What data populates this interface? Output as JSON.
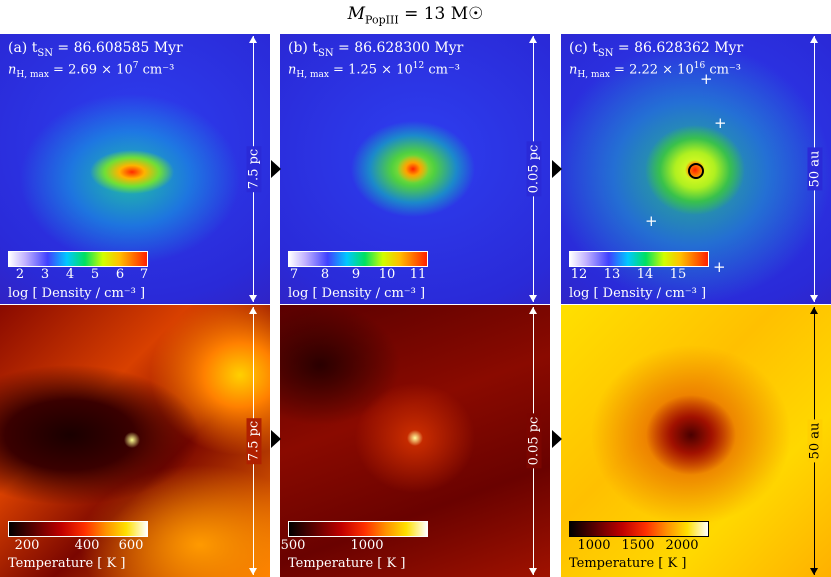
{
  "title": {
    "prefix": "M",
    "sub": "PopIII",
    "suffix": " = 13 M☉"
  },
  "panels": [
    {
      "time_label": "(a) t",
      "time_sub": "SN",
      "time_value": " = 86.608585 Myr",
      "n_label": "n",
      "n_sub": "H, max",
      "n_value": " = 2.69 × 10",
      "n_exp": "7",
      "n_unit": " cm⁻³",
      "density_ticks": [
        "2",
        "3",
        "4",
        "5",
        "6",
        "7"
      ],
      "density_label": "log [ Density / cm⁻³ ]",
      "temp_ticks": [
        "200",
        "400",
        "600"
      ],
      "temp_label": "Temperature [ K ]",
      "scale": "7.5 pc"
    },
    {
      "time_label": "(b) t",
      "time_sub": "SN",
      "time_value": " = 86.628300 Myr",
      "n_label": "n",
      "n_sub": "H, max",
      "n_value": " = 1.25 × 10",
      "n_exp": "12",
      "n_unit": " cm⁻³",
      "density_ticks": [
        "7",
        "8",
        "9",
        "10",
        "11"
      ],
      "density_label": "log [ Density / cm⁻³ ]",
      "temp_ticks": [
        "500",
        "1000"
      ],
      "temp_label": "Temperature [ K ]",
      "scale": "0.05 pc"
    },
    {
      "time_label": "(c) t",
      "time_sub": "SN",
      "time_value": " = 86.628362 Myr",
      "n_label": "n",
      "n_sub": "H, max",
      "n_value": " = 2.22 × 10",
      "n_exp": "16",
      "n_unit": " cm⁻³",
      "density_ticks": [
        "12",
        "13",
        "14",
        "15"
      ],
      "density_label": "log [ Density / cm⁻³ ]",
      "temp_ticks": [
        "1000",
        "1500",
        "2000"
      ],
      "temp_label": "Temperature [ K ]",
      "scale": "50 au"
    }
  ],
  "colors": {
    "density_bg": "#2a2ae8",
    "temp_dark": "#3a0000",
    "accent": "#ff3300"
  }
}
